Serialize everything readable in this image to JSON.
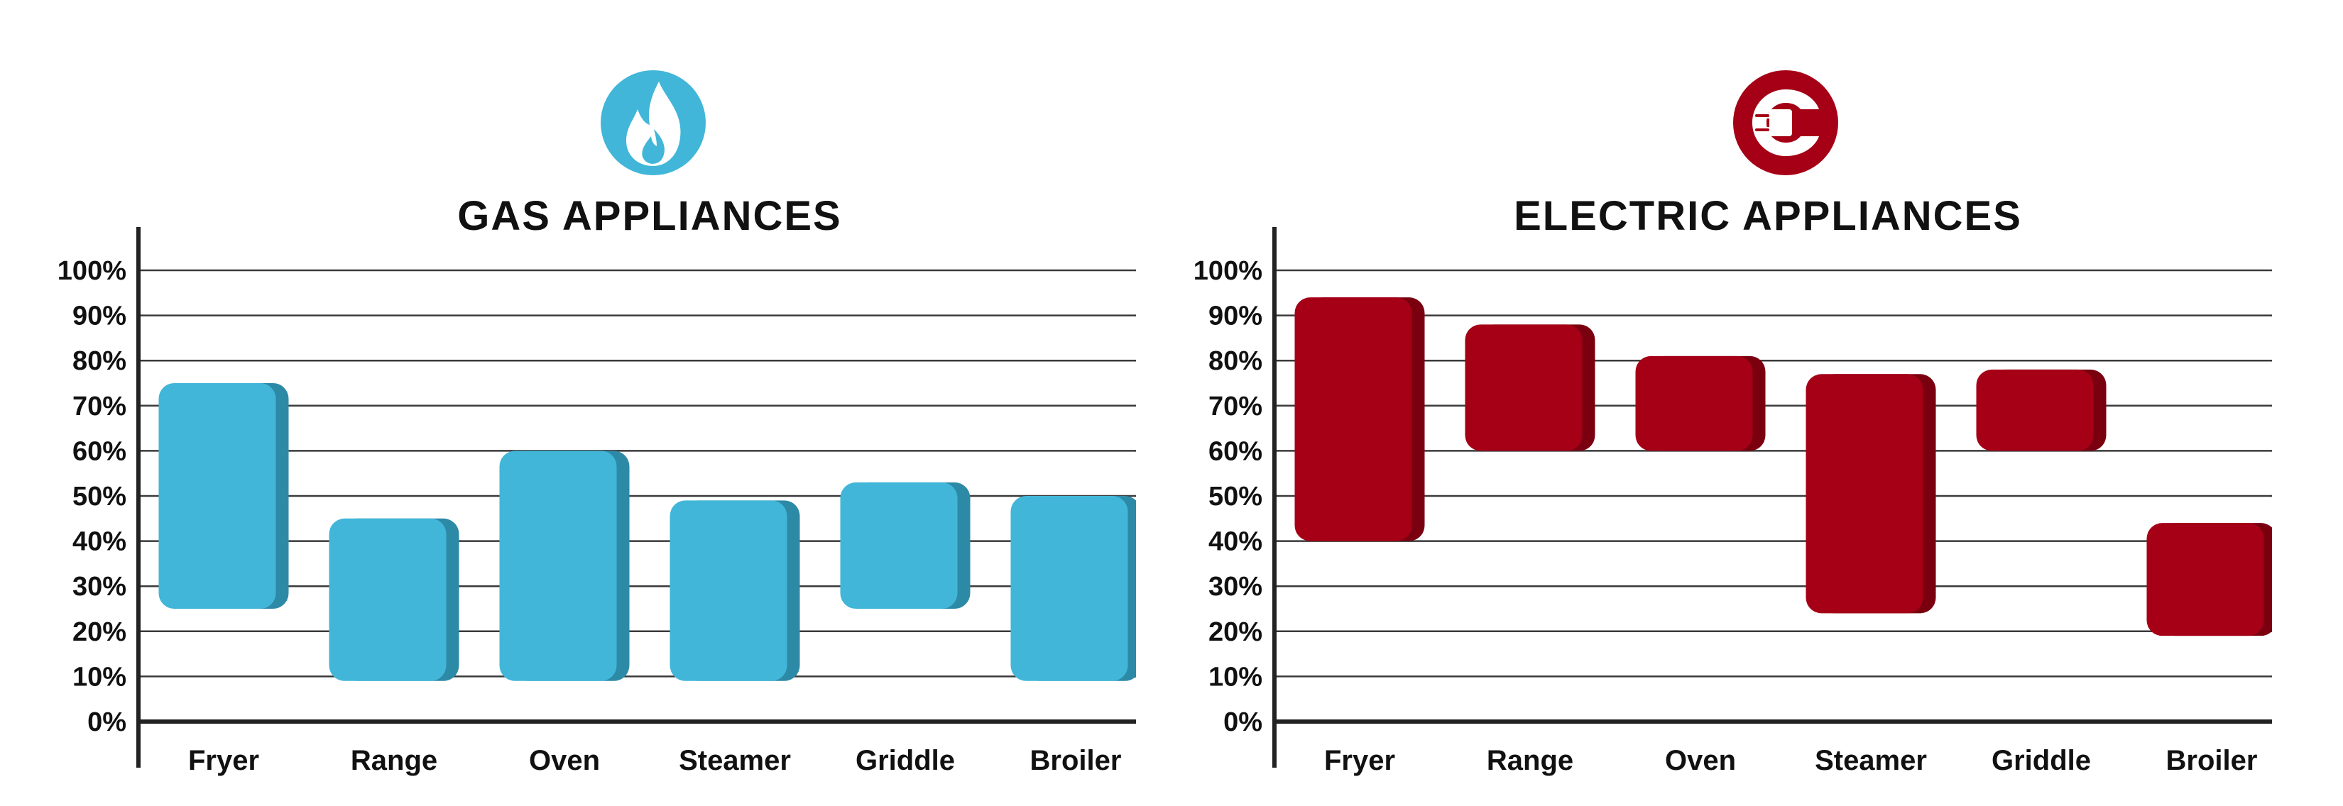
{
  "colors": {
    "gas_fill": "#41b6d8",
    "gas_side": "#2d8aa7",
    "electric_fill": "#a50016",
    "electric_side": "#7a0010",
    "grid": "#3a3a3a",
    "axis": "#222222",
    "text": "#111111"
  },
  "chart_data": [
    {
      "type": "bar",
      "subtype": "floating-range",
      "title": "GAS APPLIANCES",
      "icon": "flame-icon",
      "categories": [
        "Fryer",
        "Range",
        "Oven",
        "Steamer",
        "Griddle",
        "Broiler"
      ],
      "ranges": [
        [
          25,
          75
        ],
        [
          9,
          45
        ],
        [
          9,
          60
        ],
        [
          9,
          49
        ],
        [
          25,
          53
        ],
        [
          9,
          50
        ]
      ],
      "yticks": [
        "0%",
        "10%",
        "20%",
        "30%",
        "40%",
        "50%",
        "60%",
        "70%",
        "80%",
        "90%",
        "100%"
      ],
      "ylim": [
        0,
        100
      ],
      "grid": true,
      "color": "#41b6d8"
    },
    {
      "type": "bar",
      "subtype": "floating-range",
      "title": "ELECTRIC APPLIANCES",
      "icon": "electric-plug-icon",
      "categories": [
        "Fryer",
        "Range",
        "Oven",
        "Steamer",
        "Griddle",
        "Broiler"
      ],
      "ranges": [
        [
          40,
          94
        ],
        [
          60,
          88
        ],
        [
          60,
          81
        ],
        [
          24,
          77
        ],
        [
          60,
          78
        ],
        [
          19,
          44
        ]
      ],
      "yticks": [
        "0%",
        "10%",
        "20%",
        "30%",
        "40%",
        "50%",
        "60%",
        "70%",
        "80%",
        "90%",
        "100%"
      ],
      "ylim": [
        0,
        100
      ],
      "grid": true,
      "color": "#a50016"
    }
  ]
}
